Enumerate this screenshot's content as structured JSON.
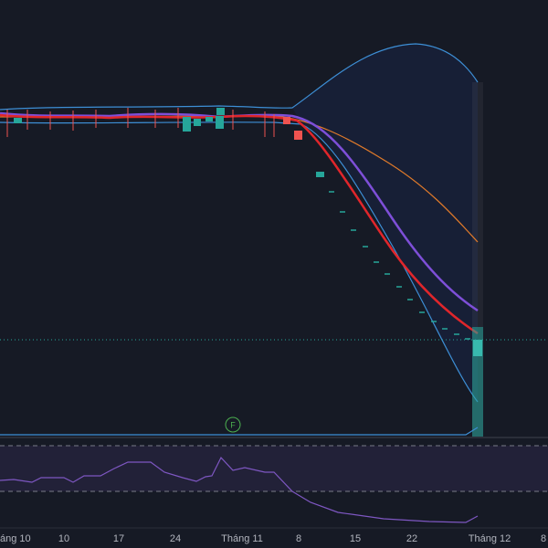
{
  "x_axis": {
    "labels": [
      "áng 10",
      "10",
      "17",
      "24",
      "Tháng 11",
      "8",
      "15",
      "22",
      "Tháng 12",
      "8"
    ]
  },
  "marker": {
    "label": "F"
  }
}
